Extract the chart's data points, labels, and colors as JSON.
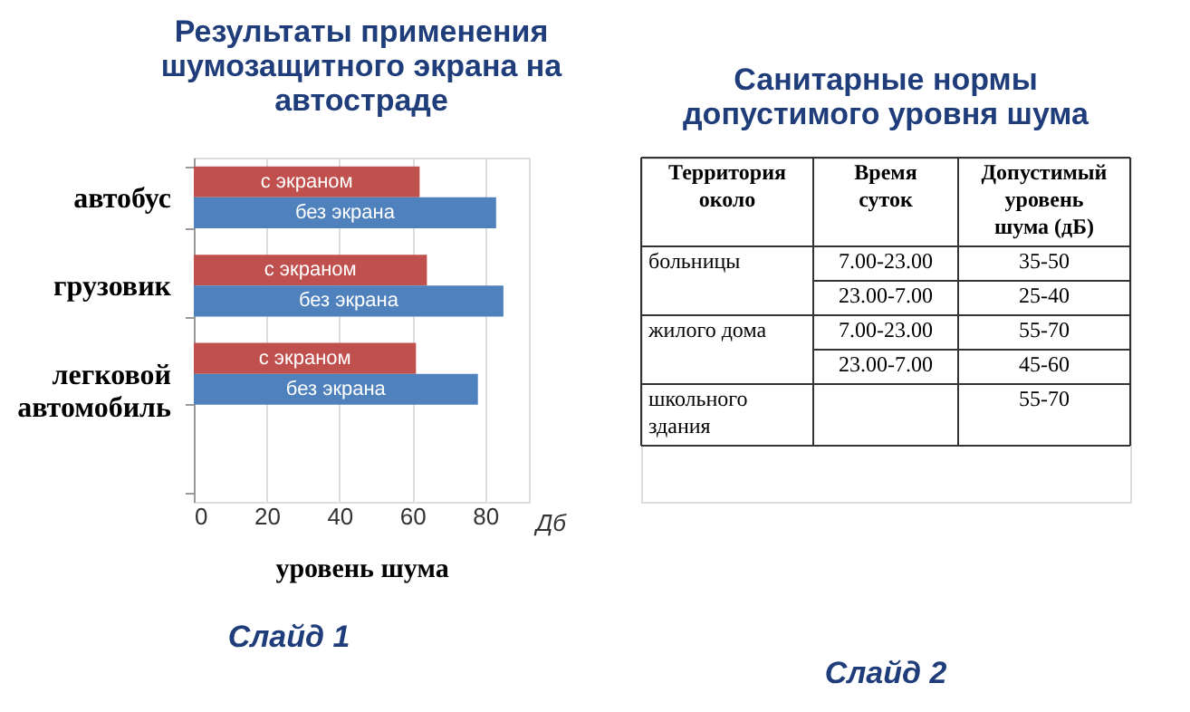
{
  "chart_data": [
    {
      "type": "bar",
      "orientation": "horizontal",
      "title": "Результаты применения\nшумозащитного экрана на\nавтостраде",
      "xlabel": "уровень шума",
      "categories": [
        "автобус",
        "грузовик",
        "легковой\nавтомобиль",
        null
      ],
      "series": [
        {
          "name": "с экраном",
          "color": "#c0504d",
          "values": [
            62,
            64,
            61,
            null
          ]
        },
        {
          "name": "без экрана",
          "color": "#4f81bd",
          "values": [
            83,
            85,
            78,
            null
          ]
        }
      ],
      "xlim": [
        0,
        92
      ],
      "xticks": [
        0,
        20,
        40,
        60,
        80
      ],
      "grid": "x",
      "annotations": [
        "Дб",
        "Слайд 1"
      ]
    },
    {
      "type": "other",
      "title": "Санитарные нормы\nдопустимого уровня шума",
      "annotations": [
        "Слайд 2",
        "Территория\nоколо\tВремя\nсуток\tДопустимый\nуровень\nшума (дБ)",
        "больницы\t7.00-23.00\t35-50",
        "\t23.00-7.00\t25-40",
        "жилого дома\t7.00-23.00\t55-70",
        "\t23.00-7.00\t45-60",
        "школьного\nздания\t\t55-70"
      ]
    }
  ]
}
